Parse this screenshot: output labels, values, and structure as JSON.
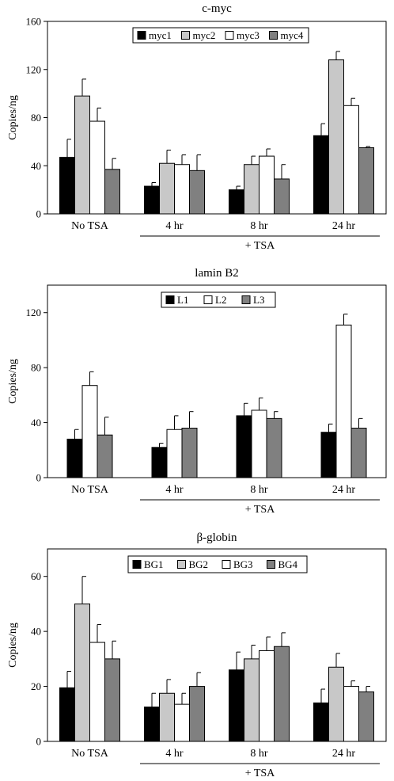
{
  "chart_data": [
    {
      "type": "bar",
      "title": "c-myc",
      "ylabel": "Copies/ng",
      "ylim": [
        0,
        160
      ],
      "yticks": [
        0,
        40,
        80,
        120,
        160
      ],
      "categories": [
        "No TSA",
        "4 hr",
        "8 hr",
        "24 hr"
      ],
      "group_label": "+ TSA",
      "legend_position": "top-center",
      "series": [
        {
          "name": "myc1",
          "color": "#000000",
          "values": [
            47,
            23,
            20,
            65
          ],
          "errors": [
            15,
            3,
            3,
            10
          ]
        },
        {
          "name": "myc2",
          "color": "#c8c8c8",
          "values": [
            98,
            42,
            41,
            128
          ],
          "errors": [
            14,
            11,
            7,
            7
          ]
        },
        {
          "name": "myc3",
          "color": "#ffffff",
          "values": [
            77,
            41,
            48,
            90
          ],
          "errors": [
            11,
            8,
            6,
            6
          ]
        },
        {
          "name": "myc4",
          "color": "#808080",
          "values": [
            37,
            36,
            29,
            55
          ],
          "errors": [
            9,
            13,
            12,
            1
          ]
        }
      ]
    },
    {
      "type": "bar",
      "title": "lamin B2",
      "ylabel": "Copies/ng",
      "ylim": [
        0,
        140
      ],
      "yticks": [
        0,
        40,
        80,
        120
      ],
      "categories": [
        "No TSA",
        "4 hr",
        "8 hr",
        "24 hr"
      ],
      "group_label": "+ TSA",
      "legend_position": "top-center",
      "series": [
        {
          "name": "L1",
          "color": "#000000",
          "values": [
            28,
            22,
            45,
            33
          ],
          "errors": [
            7,
            3,
            9,
            6
          ]
        },
        {
          "name": "L2",
          "color": "#ffffff",
          "values": [
            67,
            35,
            49,
            111
          ],
          "errors": [
            10,
            10,
            9,
            8
          ]
        },
        {
          "name": "L3",
          "color": "#808080",
          "values": [
            31,
            36,
            43,
            36
          ],
          "errors": [
            13,
            12,
            5,
            7
          ]
        }
      ]
    },
    {
      "type": "bar",
      "title": "β-globin",
      "ylabel": "Copies/ng",
      "ylim": [
        0,
        70
      ],
      "yticks": [
        0,
        20,
        40,
        60
      ],
      "categories": [
        "No TSA",
        "4 hr",
        "8 hr",
        "24 hr"
      ],
      "group_label": "+ TSA",
      "legend_position": "top-center",
      "series": [
        {
          "name": "BG1",
          "color": "#000000",
          "values": [
            19.5,
            12.5,
            26,
            14
          ],
          "errors": [
            6,
            5,
            6.5,
            5
          ]
        },
        {
          "name": "BG2",
          "color": "#c8c8c8",
          "values": [
            50,
            17.5,
            30,
            27
          ],
          "errors": [
            10,
            5,
            5,
            5
          ]
        },
        {
          "name": "BG3",
          "color": "#ffffff",
          "values": [
            36,
            13.5,
            33,
            20
          ],
          "errors": [
            6.5,
            4,
            5,
            2
          ]
        },
        {
          "name": "BG4",
          "color": "#808080",
          "values": [
            30,
            20,
            34.5,
            18
          ],
          "errors": [
            6.5,
            5,
            5,
            2
          ]
        }
      ]
    }
  ]
}
